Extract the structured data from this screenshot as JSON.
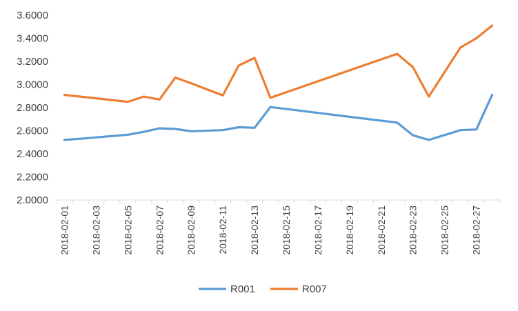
{
  "chart_data": {
    "type": "line",
    "title": "",
    "xlabel": "",
    "ylabel": "",
    "x_tick_labels": [
      "2018-02-01",
      "2018-02-03",
      "2018-02-05",
      "2018-02-07",
      "2018-02-09",
      "2018-02-11",
      "2018-02-13",
      "2018-02-15",
      "2018-02-17",
      "2018-02-19",
      "2018-02-21",
      "2018-02-23",
      "2018-02-25",
      "2018-02-27"
    ],
    "x": [
      "2018-02-01",
      "2018-02-02",
      "2018-02-05",
      "2018-02-06",
      "2018-02-07",
      "2018-02-08",
      "2018-02-09",
      "2018-02-11",
      "2018-02-12",
      "2018-02-13",
      "2018-02-14",
      "2018-02-22",
      "2018-02-23",
      "2018-02-24",
      "2018-02-26",
      "2018-02-27",
      "2018-02-28"
    ],
    "ylim": [
      2.0,
      3.6
    ],
    "y_tick_labels": [
      "2.0000",
      "2.2000",
      "2.4000",
      "2.6000",
      "2.8000",
      "3.0000",
      "3.2000",
      "3.4000",
      "3.6000"
    ],
    "grid": false,
    "legend_position": "bottom",
    "series": [
      {
        "name": "R001",
        "color": "#5B9BD5",
        "values": [
          2.52,
          2.53,
          2.565,
          2.59,
          2.62,
          2.615,
          2.595,
          2.605,
          2.63,
          2.625,
          2.805,
          2.67,
          2.56,
          2.52,
          2.605,
          2.61,
          2.91
        ]
      },
      {
        "name": "R007",
        "color": "#ED7D31",
        "values": [
          2.91,
          2.895,
          2.85,
          2.895,
          2.87,
          3.06,
          3.01,
          2.905,
          3.165,
          3.23,
          2.885,
          3.265,
          3.15,
          2.895,
          3.32,
          3.4,
          3.51
        ]
      }
    ]
  }
}
